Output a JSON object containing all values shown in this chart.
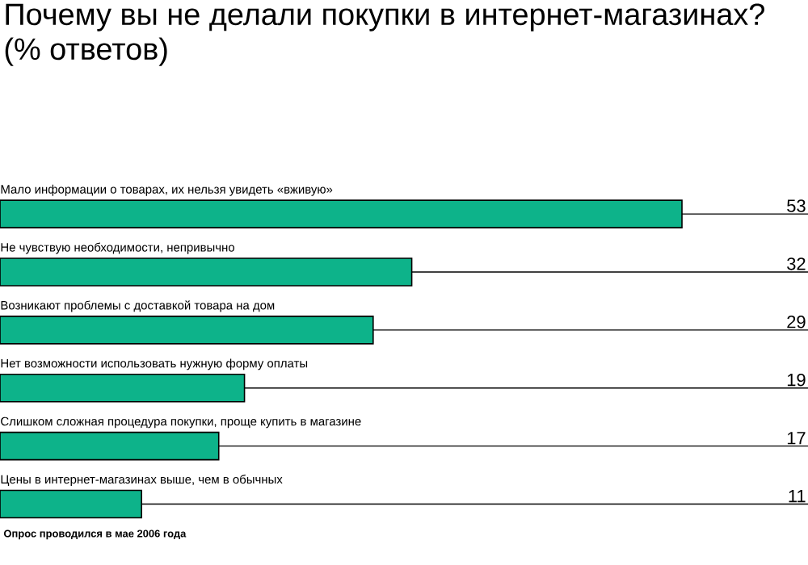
{
  "chart_data": {
    "type": "bar",
    "orientation": "horizontal",
    "title": "Почему вы не делали покупки в интернет-магазинах?",
    "subtitle": "(% ответов)",
    "categories": [
      "Мало информации о товарах, их нельзя увидеть «вживую»",
      "Не чувствую необходимости, непривычно",
      "Возникают проблемы с доставкой товара на дом",
      "Нет возможности использовать нужную форму оплаты",
      "Слишком сложная процедура покупки, проще купить в магазине",
      "Цены в интернет-магазинах выше, чем в обычных"
    ],
    "values": [
      53,
      32,
      29,
      19,
      17,
      11
    ],
    "color": "#0db38a",
    "data_labels": true,
    "annotations": [
      "Опрос проводился в мае 2006 года"
    ]
  }
}
